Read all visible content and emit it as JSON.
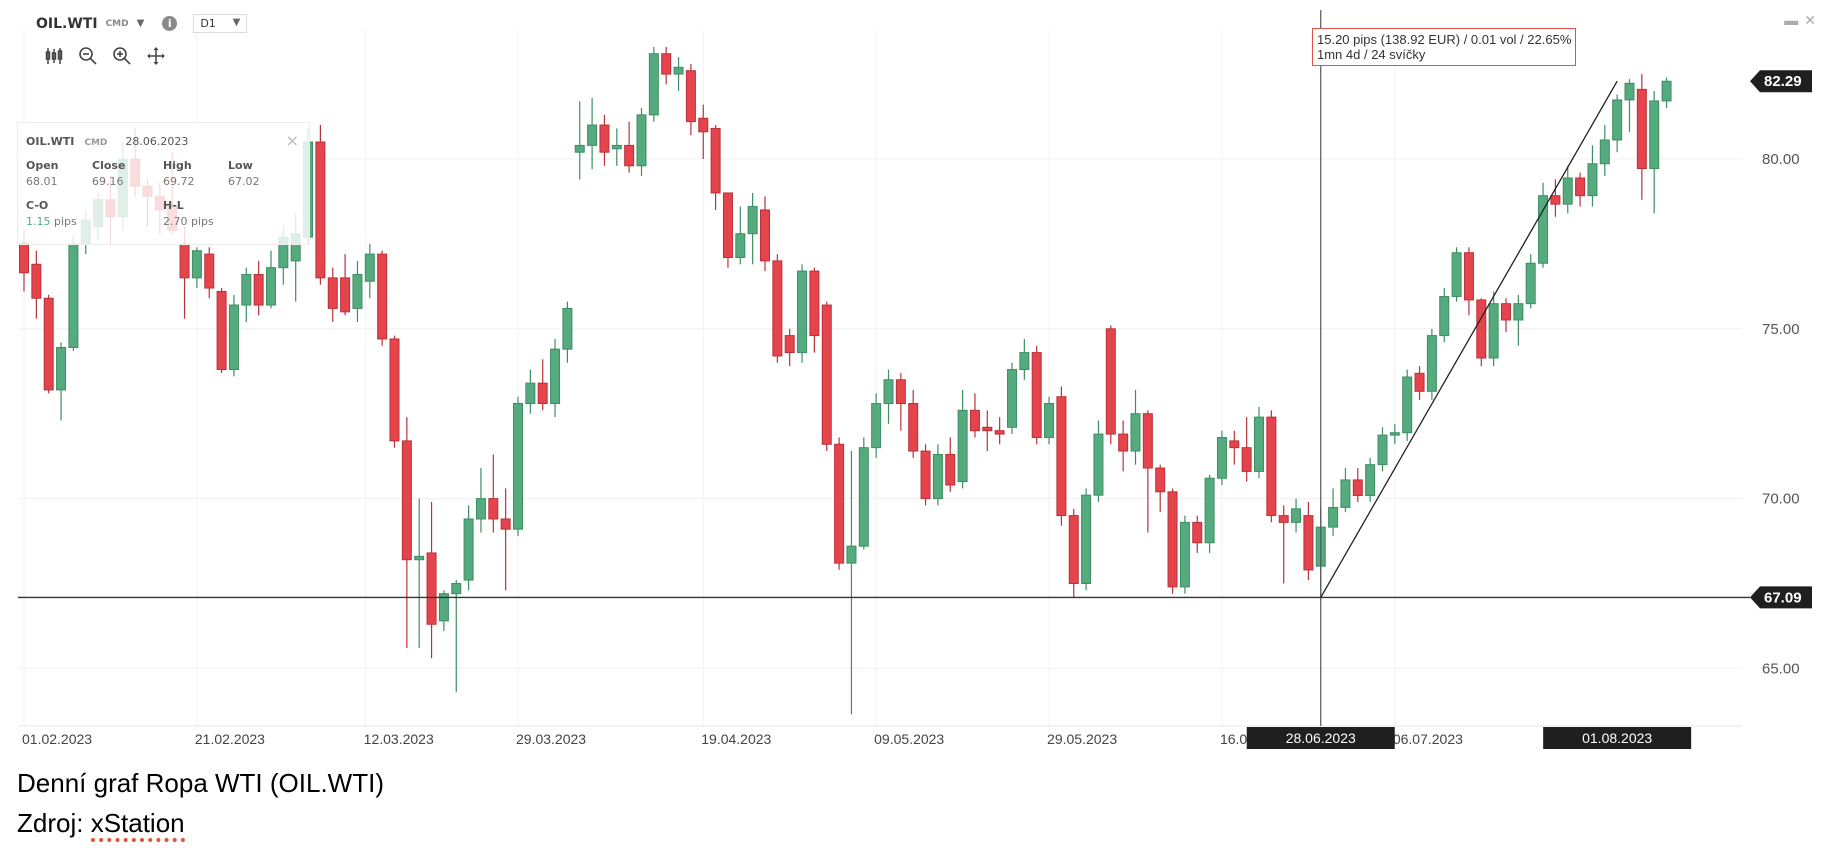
{
  "header": {
    "symbol": "OIL.WTI",
    "symbol_type": "CMD",
    "timeframe": "D1"
  },
  "toolbar": {
    "icons": [
      "candles-icon",
      "zoom-out-icon",
      "zoom-in-icon",
      "pan-icon"
    ]
  },
  "info_box": {
    "symbol": "OIL.WTI",
    "symbol_type": "CMD",
    "date": "28.06.2023",
    "open_label": "Open",
    "open": "68.01",
    "close_label": "Close",
    "close": "69.16",
    "high_label": "High",
    "high": "69.72",
    "low_label": "Low",
    "low": "67.02",
    "co_label": "C-O",
    "co_value": "1.15",
    "co_unit": " pips",
    "hl_label": "H-L",
    "hl_value": "2.70 pips"
  },
  "measure": {
    "line1": "15.20 pips (138.92 EUR) / 0.01 vol / 22.65%",
    "line2": "1mn 4d / 24 svíčky"
  },
  "caption": {
    "title": "Denní graf Ropa WTI (OIL.WTI)",
    "source_label": "Zdroj: ",
    "source_name": "xStation"
  },
  "colors": {
    "up": "#55ab7e",
    "up_border": "#3e8e63",
    "down": "#e5444c",
    "down_border": "#b8323a",
    "label_bg": "#1f1f1f",
    "measure_border": "#d9534f"
  },
  "chart_data": {
    "type": "candlestick",
    "ylim": [
      63.2,
      84.2
    ],
    "y_ticks": [
      "65.00",
      "70.00",
      "75.00",
      "80.00"
    ],
    "x_tick_labels": [
      "01.02.2023",
      "21.02.2023",
      "12.03.2023",
      "29.03.2023",
      "19.04.2023",
      "09.05.2023",
      "29.05.2023",
      "16.06.2023",
      "06.07.2023"
    ],
    "grid": true,
    "current_price": "82.29",
    "horizontal_line": "67.09",
    "crosshair_date_label": "28.06.2023",
    "highlight_date_label": "01.08.2023",
    "trendline": {
      "from": [
        "2023-06-28",
        67.09
      ],
      "to": [
        "2023-08-01",
        82.29
      ]
    },
    "candle_fields": [
      "date",
      "open",
      "high",
      "low",
      "close"
    ],
    "candles": [
      [
        "2023-02-01",
        77.52,
        77.9,
        76.1,
        76.65
      ],
      [
        "2023-02-02",
        76.9,
        77.3,
        75.3,
        75.9
      ],
      [
        "2023-02-03",
        75.9,
        76.0,
        73.1,
        73.2
      ],
      [
        "2023-02-06",
        73.2,
        74.6,
        72.3,
        74.45
      ],
      [
        "2023-02-07",
        74.45,
        77.7,
        74.35,
        77.5
      ],
      [
        "2023-02-08",
        77.5,
        78.5,
        77.2,
        78.2
      ],
      [
        "2023-02-09",
        78.0,
        79.0,
        77.6,
        78.8
      ],
      [
        "2023-02-10",
        78.8,
        79.5,
        77.5,
        78.3
      ],
      [
        "2023-02-13",
        78.3,
        80.5,
        77.9,
        80.0
      ],
      [
        "2023-02-14",
        80.0,
        80.9,
        78.9,
        79.2
      ],
      [
        "2023-02-15",
        79.2,
        79.4,
        78.0,
        78.9
      ],
      [
        "2023-02-16",
        78.9,
        79.3,
        77.8,
        78.5
      ],
      [
        "2023-02-17",
        78.6,
        80.2,
        77.8,
        77.9
      ],
      [
        "2023-02-20",
        77.5,
        78.0,
        75.3,
        76.5
      ],
      [
        "2023-02-21",
        76.5,
        77.4,
        76.2,
        77.3
      ],
      [
        "2023-02-22",
        77.2,
        77.4,
        75.9,
        76.2
      ],
      [
        "2023-02-23",
        76.1,
        76.2,
        73.7,
        73.8
      ],
      [
        "2023-02-24",
        73.8,
        76.0,
        73.6,
        75.7
      ],
      [
        "2023-02-27",
        75.7,
        76.8,
        75.2,
        76.6
      ],
      [
        "2023-02-28",
        76.6,
        77.0,
        75.4,
        75.7
      ],
      [
        "2023-03-01",
        75.7,
        77.3,
        75.6,
        76.8
      ],
      [
        "2023-03-02",
        76.8,
        78.0,
        76.3,
        77.7
      ],
      [
        "2023-03-03",
        77.0,
        78.4,
        75.8,
        77.8
      ],
      [
        "2023-03-06",
        77.7,
        80.9,
        77.5,
        80.5
      ],
      [
        "2023-03-07",
        80.5,
        81.0,
        76.3,
        76.5
      ],
      [
        "2023-03-08",
        76.5,
        76.8,
        75.2,
        75.6
      ],
      [
        "2023-03-09",
        76.5,
        77.2,
        75.4,
        75.5
      ],
      [
        "2023-03-10",
        75.6,
        77.0,
        75.2,
        76.6
      ],
      [
        "2023-03-13",
        76.4,
        77.5,
        75.9,
        77.2
      ],
      [
        "2023-03-14",
        77.2,
        77.3,
        74.5,
        74.7
      ],
      [
        "2023-03-15",
        74.7,
        74.8,
        71.5,
        71.7
      ],
      [
        "2023-03-16",
        71.7,
        72.4,
        65.6,
        68.2
      ],
      [
        "2023-03-17",
        68.2,
        70.0,
        65.6,
        68.3
      ],
      [
        "2023-03-20",
        68.4,
        69.9,
        65.3,
        66.3
      ],
      [
        "2023-03-21",
        66.4,
        67.3,
        66.1,
        67.2
      ],
      [
        "2023-03-22",
        67.2,
        67.6,
        64.3,
        67.5
      ],
      [
        "2023-03-23",
        67.6,
        69.8,
        67.3,
        69.4
      ],
      [
        "2023-03-24",
        69.4,
        70.9,
        69.0,
        70.0
      ],
      [
        "2023-03-27",
        70.0,
        71.3,
        69.0,
        69.4
      ],
      [
        "2023-03-28",
        69.4,
        70.3,
        67.3,
        69.1
      ],
      [
        "2023-03-29",
        69.1,
        73.0,
        68.9,
        72.8
      ],
      [
        "2023-03-30",
        72.8,
        73.8,
        72.5,
        73.4
      ],
      [
        "2023-03-31",
        73.4,
        74.1,
        72.6,
        72.8
      ],
      [
        "2023-04-03",
        72.8,
        74.7,
        72.4,
        74.4
      ],
      [
        "2023-04-04",
        74.4,
        75.8,
        74.0,
        75.6
      ],
      [
        "2023-04-05",
        80.2,
        81.7,
        79.4,
        80.4
      ],
      [
        "2023-04-06",
        80.4,
        81.8,
        79.7,
        81.0
      ],
      [
        "2023-04-07",
        81.0,
        81.3,
        79.8,
        80.2
      ],
      [
        "2023-04-10",
        80.3,
        80.9,
        79.8,
        80.4
      ],
      [
        "2023-04-11",
        80.4,
        81.1,
        79.6,
        79.8
      ],
      [
        "2023-04-12",
        79.8,
        81.5,
        79.5,
        81.3
      ],
      [
        "2023-04-13",
        81.3,
        83.3,
        81.1,
        83.1
      ],
      [
        "2023-04-14",
        83.1,
        83.3,
        82.2,
        82.5
      ],
      [
        "2023-04-17",
        82.5,
        83.0,
        82.0,
        82.7
      ],
      [
        "2023-04-18",
        82.6,
        82.8,
        80.7,
        81.1
      ],
      [
        "2023-04-19",
        81.2,
        81.6,
        80.0,
        80.8
      ],
      [
        "2023-04-20",
        80.9,
        81.0,
        78.5,
        79.0
      ],
      [
        "2023-04-21",
        79.0,
        79.0,
        76.8,
        77.1
      ],
      [
        "2023-04-24",
        77.1,
        78.6,
        76.9,
        77.8
      ],
      [
        "2023-04-25",
        77.8,
        79.0,
        76.9,
        78.6
      ],
      [
        "2023-04-26",
        78.5,
        78.9,
        76.7,
        77.0
      ],
      [
        "2023-04-27",
        77.0,
        77.2,
        74.0,
        74.2
      ],
      [
        "2023-04-28",
        74.8,
        75.0,
        73.9,
        74.3
      ],
      [
        "2023-05-01",
        74.3,
        76.9,
        74.0,
        76.7
      ],
      [
        "2023-05-02",
        76.7,
        76.8,
        74.3,
        74.8
      ],
      [
        "2023-05-03",
        75.7,
        75.8,
        71.4,
        71.6
      ],
      [
        "2023-05-04",
        71.6,
        71.8,
        67.9,
        68.1
      ],
      [
        "2023-05-05",
        68.1,
        71.4,
        63.65,
        68.6
      ],
      [
        "2023-05-08",
        68.6,
        71.8,
        68.5,
        71.5
      ],
      [
        "2023-05-09",
        71.5,
        73.1,
        71.2,
        72.8
      ],
      [
        "2023-05-10",
        72.8,
        73.8,
        72.2,
        73.5
      ],
      [
        "2023-05-11",
        73.5,
        73.7,
        72.0,
        72.8
      ],
      [
        "2023-05-12",
        72.8,
        73.2,
        71.2,
        71.4
      ],
      [
        "2023-05-15",
        71.4,
        71.6,
        69.8,
        70.0
      ],
      [
        "2023-05-16",
        70.0,
        71.6,
        69.8,
        71.3
      ],
      [
        "2023-05-17",
        71.3,
        71.8,
        70.2,
        70.4
      ],
      [
        "2023-05-18",
        70.5,
        73.2,
        70.3,
        72.6
      ],
      [
        "2023-05-19",
        72.6,
        73.1,
        71.8,
        72.0
      ],
      [
        "2023-05-22",
        72.1,
        72.6,
        71.4,
        72.0
      ],
      [
        "2023-05-23",
        72.0,
        72.4,
        71.6,
        71.9
      ],
      [
        "2023-05-24",
        72.1,
        74.0,
        71.9,
        73.8
      ],
      [
        "2023-05-25",
        73.8,
        74.7,
        73.5,
        74.3
      ],
      [
        "2023-05-26",
        74.3,
        74.5,
        71.6,
        71.8
      ],
      [
        "2023-05-29",
        71.8,
        73.0,
        71.6,
        72.8
      ],
      [
        "2023-05-30",
        73.0,
        73.3,
        69.2,
        69.5
      ],
      [
        "2023-05-31",
        69.5,
        69.7,
        67.1,
        67.5
      ],
      [
        "2023-06-01",
        67.5,
        70.3,
        67.3,
        70.1
      ],
      [
        "2023-06-02",
        70.1,
        72.3,
        69.9,
        71.9
      ],
      [
        "2023-06-05",
        75.0,
        75.1,
        71.6,
        71.9
      ],
      [
        "2023-06-06",
        71.9,
        72.3,
        70.8,
        71.4
      ],
      [
        "2023-06-07",
        71.4,
        73.2,
        71.0,
        72.5
      ],
      [
        "2023-06-08",
        72.5,
        72.6,
        69.0,
        70.9
      ],
      [
        "2023-06-09",
        70.9,
        71.0,
        69.6,
        70.2
      ],
      [
        "2023-06-12",
        70.2,
        70.3,
        67.2,
        67.4
      ],
      [
        "2023-06-13",
        67.4,
        69.5,
        67.2,
        69.3
      ],
      [
        "2023-06-14",
        69.3,
        69.5,
        68.4,
        68.7
      ],
      [
        "2023-06-15",
        68.7,
        70.7,
        68.4,
        70.6
      ],
      [
        "2023-06-16",
        70.6,
        72.0,
        70.4,
        71.8
      ],
      [
        "2023-06-19",
        71.7,
        72.0,
        71.0,
        71.5
      ],
      [
        "2023-06-20",
        71.5,
        72.4,
        70.5,
        70.8
      ],
      [
        "2023-06-21",
        70.8,
        72.7,
        70.6,
        72.4
      ],
      [
        "2023-06-22",
        72.4,
        72.6,
        69.3,
        69.5
      ],
      [
        "2023-06-23",
        69.5,
        69.8,
        67.5,
        69.3
      ],
      [
        "2023-06-26",
        69.3,
        70.0,
        69.0,
        69.7
      ],
      [
        "2023-06-27",
        69.5,
        69.9,
        67.6,
        67.9
      ],
      [
        "2023-06-28",
        68.01,
        69.72,
        67.02,
        69.16
      ],
      [
        "2023-06-29",
        69.16,
        70.3,
        68.9,
        69.74
      ],
      [
        "2023-06-30",
        69.74,
        70.9,
        69.6,
        70.55
      ],
      [
        "2023-07-03",
        70.55,
        70.9,
        69.9,
        70.09
      ],
      [
        "2023-07-04",
        70.09,
        71.2,
        69.9,
        71.0
      ],
      [
        "2023-07-05",
        71.0,
        72.1,
        70.8,
        71.87
      ],
      [
        "2023-07-06",
        71.87,
        72.2,
        71.6,
        71.94
      ],
      [
        "2023-07-07",
        71.94,
        73.8,
        71.7,
        73.58
      ],
      [
        "2023-07-10",
        73.69,
        73.9,
        72.9,
        73.16
      ],
      [
        "2023-07-11",
        73.16,
        75.0,
        72.9,
        74.8
      ],
      [
        "2023-07-12",
        74.8,
        76.2,
        74.6,
        75.95
      ],
      [
        "2023-07-13",
        75.95,
        77.4,
        75.8,
        77.24
      ],
      [
        "2023-07-14",
        77.24,
        77.4,
        75.4,
        75.85
      ],
      [
        "2023-07-17",
        75.85,
        75.9,
        73.9,
        74.14
      ],
      [
        "2023-07-18",
        74.14,
        76.1,
        73.9,
        75.74
      ],
      [
        "2023-07-19",
        75.74,
        75.9,
        74.9,
        75.26
      ],
      [
        "2023-07-20",
        75.26,
        76.0,
        74.5,
        75.74
      ],
      [
        "2023-07-21",
        75.74,
        77.2,
        75.6,
        76.93
      ],
      [
        "2023-07-24",
        76.93,
        79.3,
        76.8,
        78.92
      ],
      [
        "2023-07-25",
        78.92,
        79.4,
        78.3,
        78.67
      ],
      [
        "2023-07-26",
        78.67,
        79.8,
        78.4,
        79.44
      ],
      [
        "2023-07-27",
        79.44,
        79.6,
        78.6,
        78.92
      ],
      [
        "2023-07-28",
        78.92,
        80.4,
        78.6,
        79.86
      ],
      [
        "2023-07-31",
        79.86,
        81.0,
        79.5,
        80.56
      ],
      [
        "2023-08-01",
        80.56,
        81.9,
        80.2,
        81.74
      ],
      [
        "2023-08-02",
        81.74,
        82.35,
        80.8,
        82.23
      ],
      [
        "2023-08-03",
        82.05,
        82.5,
        78.8,
        79.72
      ],
      [
        "2023-08-04",
        79.72,
        82.0,
        78.4,
        81.71
      ],
      [
        "2023-08-07",
        81.71,
        82.4,
        81.5,
        82.29
      ]
    ]
  }
}
